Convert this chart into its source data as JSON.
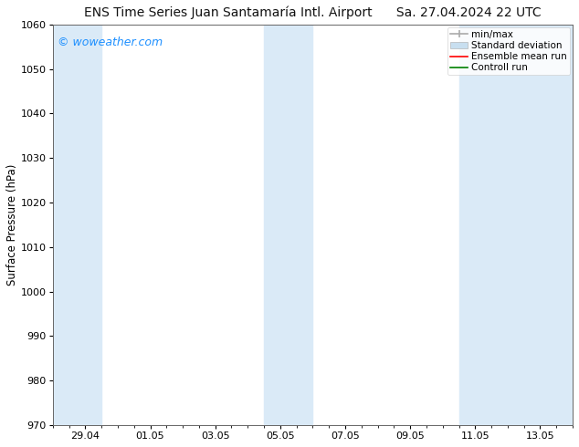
{
  "title": "ENS Time Series Juan Santamaría Intl. Airport",
  "title_right": "Sa. 27.04.2024 22 UTC",
  "ylabel": "Surface Pressure (hPa)",
  "watermark": "© woweather.com",
  "watermark_color": "#1e90ff",
  "ylim": [
    970,
    1060
  ],
  "ytick_step": 10,
  "background_color": "#ffffff",
  "plot_bg_color": "#ffffff",
  "band_color": "#daeaf7",
  "legend_items": [
    {
      "label": "min/max",
      "color": "#aaaaaa"
    },
    {
      "label": "Standard deviation",
      "color": "#c8dff0"
    },
    {
      "label": "Ensemble mean run",
      "color": "#ff0000"
    },
    {
      "label": "Controll run",
      "color": "#008000"
    }
  ],
  "x_tick_labels": [
    "29.04",
    "01.05",
    "03.05",
    "05.05",
    "07.05",
    "09.05",
    "11.05",
    "13.05"
  ],
  "x_tick_pos": [
    1,
    3,
    5,
    7,
    9,
    11,
    13,
    15
  ],
  "xlim": [
    0,
    16
  ],
  "shade_bands": [
    {
      "start": -0.1,
      "end": 1.5
    },
    {
      "start": 6.5,
      "end": 8.0
    },
    {
      "start": 12.5,
      "end": 16.1
    }
  ],
  "title_fontsize": 10,
  "tick_fontsize": 8,
  "legend_fontsize": 7.5,
  "watermark_fontsize": 9
}
